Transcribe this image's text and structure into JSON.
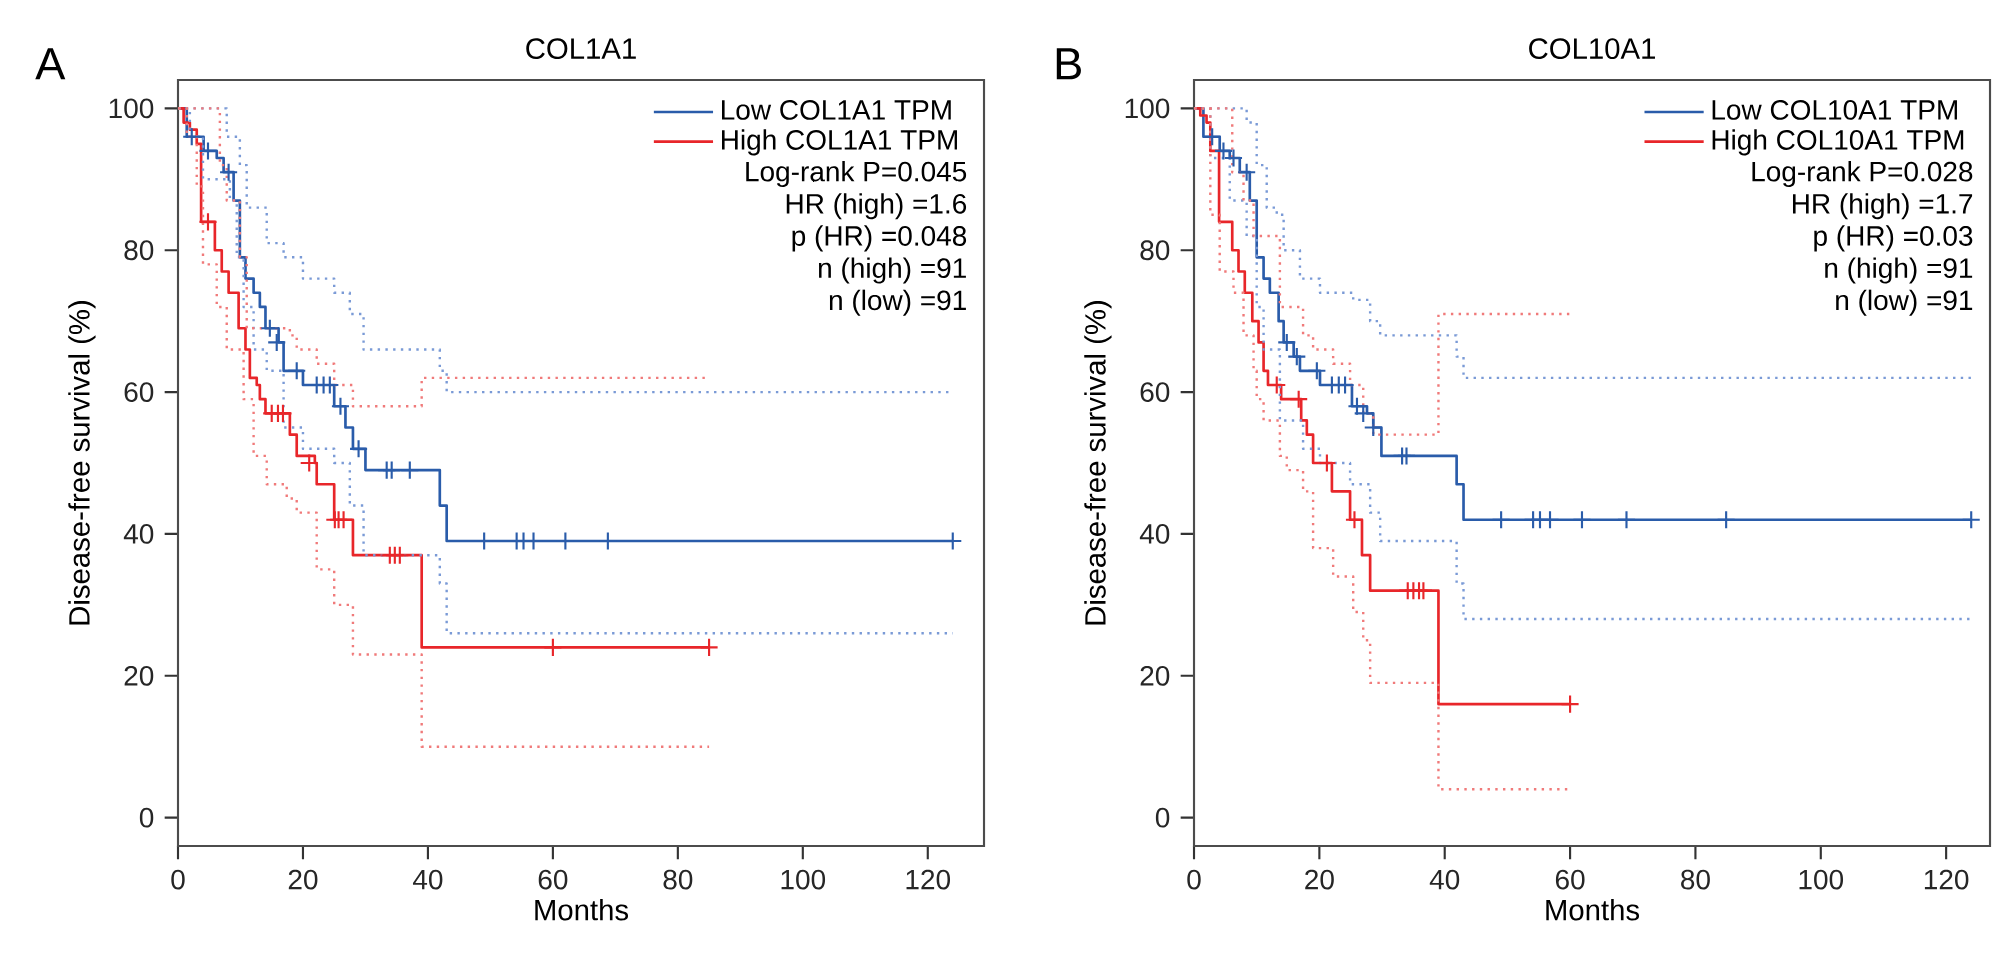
{
  "chart_data": [
    {
      "type": "step",
      "title": "COL1A1",
      "xlabel": "Months",
      "ylabel": "Disease-free survival (%)",
      "xlim": [
        0,
        129
      ],
      "ylim": [
        -4,
        104
      ],
      "xticks": [
        0,
        20,
        40,
        60,
        80,
        100,
        120
      ],
      "yticks": [
        0,
        20,
        40,
        60,
        80,
        100
      ],
      "legend": "top right",
      "annotations": [
        "A",
        "Log-rank P=0.045",
        "HR (high) =1.6",
        "p (HR) =0.048",
        "n (high) =91",
        "n (low) =91"
      ],
      "series": [
        {
          "name": "Low COL1A1 TPM",
          "color": "#2a5caa",
          "x": [
            0,
            1.4,
            4.1,
            6.2,
            7.3,
            8.9,
            9.9,
            10.8,
            12.1,
            13.1,
            14,
            16.1,
            16.9,
            20,
            25,
            26.8,
            28,
            30,
            41.9,
            43,
            124
          ],
          "values": [
            100,
            96,
            94,
            93,
            91,
            87,
            79,
            76,
            74,
            72,
            69,
            67,
            63,
            61,
            58,
            55,
            52,
            49,
            44,
            39,
            39
          ]
        },
        {
          "name": "High COL1A1 TPM",
          "color": "#e8262a",
          "x": [
            0,
            0.9,
            1.9,
            3,
            3.7,
            5.9,
            7,
            8.1,
            9.7,
            10.8,
            11.5,
            12.6,
            13.1,
            14,
            17.9,
            19,
            21.9,
            22.2,
            25,
            28,
            39,
            85
          ],
          "values": [
            100,
            98,
            97,
            95,
            84,
            80,
            77,
            74,
            69,
            66,
            62,
            61,
            59,
            57,
            54,
            51,
            50,
            47,
            42,
            37,
            24,
            24
          ]
        },
        {
          "color": "#7a9ad6",
          "line_style": "dotted",
          "x": [
            0,
            7.8,
            9.9,
            11,
            14.2,
            16.9,
            20,
            25,
            27.5,
            29.7,
            41.9,
            43,
            124
          ],
          "values": [
            100,
            96,
            92,
            86,
            81,
            79,
            76,
            74,
            71,
            66,
            63,
            60,
            60
          ]
        },
        {
          "color": "#7a9ad6",
          "line_style": "dotted",
          "x": [
            0,
            1.9,
            4,
            8.3,
            9.4,
            10.5,
            12.1,
            14.2,
            16.9,
            20,
            25,
            27.5,
            29.7,
            41.9,
            43,
            124
          ],
          "values": [
            100,
            96,
            90,
            87,
            79,
            72,
            66,
            63,
            55,
            52,
            50,
            44,
            37,
            33,
            26,
            26
          ]
        },
        {
          "color": "#f07a7a",
          "line_style": "dotted",
          "x": [
            0,
            6.7,
            7.8,
            9.9,
            11,
            17.9,
            19,
            22.2,
            25,
            28,
            39,
            85
          ],
          "values": [
            100,
            92,
            87,
            79,
            69,
            68,
            66,
            64,
            61,
            58,
            62,
            62
          ]
        },
        {
          "color": "#f07a7a",
          "line_style": "dotted",
          "x": [
            0,
            1.4,
            3,
            4,
            6.2,
            7.8,
            10.5,
            12.1,
            14.2,
            17.4,
            19,
            22.2,
            25,
            28,
            39,
            85
          ],
          "values": [
            100,
            96,
            89,
            78,
            72,
            66,
            59,
            51,
            47,
            45,
            43,
            35,
            30,
            23,
            10,
            10
          ]
        },
        {
          "type": "scatter",
          "marker": "cross",
          "color": "#2a5caa",
          "x": [
            2.2,
            4.8,
            8.1,
            14.7,
            15.8,
            19,
            22.2,
            23.3,
            24.3,
            26,
            28.9,
            33.4,
            34.2,
            37.1,
            49,
            54.2,
            55.3,
            56.9,
            62,
            68.8,
            124
          ],
          "values": [
            96,
            94,
            91,
            69,
            67,
            63,
            61,
            61,
            61,
            58,
            52,
            49,
            49,
            49,
            39,
            39,
            39,
            39,
            39,
            39,
            39
          ]
        },
        {
          "type": "scatter",
          "marker": "cross",
          "color": "#e8262a",
          "x": [
            4.8,
            15,
            16,
            16.8,
            21,
            25.1,
            25.7,
            26.5,
            33.9,
            34.7,
            35.5,
            60,
            85
          ],
          "values": [
            84,
            57,
            57,
            57,
            50,
            42,
            42,
            42,
            37,
            37,
            37,
            24,
            24
          ]
        }
      ]
    },
    {
      "type": "step",
      "title": "COL10A1",
      "xlabel": "Months",
      "ylabel": "Disease-free survival (%)",
      "xlim": [
        0,
        127
      ],
      "ylim": [
        -4,
        104
      ],
      "xticks": [
        0,
        20,
        40,
        60,
        80,
        100,
        120
      ],
      "yticks": [
        0,
        20,
        40,
        60,
        80,
        100
      ],
      "legend": "top right",
      "annotations": [
        "B",
        "Log-rank P=0.028",
        "HR (high) =1.7",
        "p (HR) =0.03",
        "n (high) =91",
        "n (low) =91"
      ],
      "series": [
        {
          "name": "Low COL10A1 TPM",
          "color": "#2a5caa",
          "x": [
            0,
            1.5,
            4.1,
            5.7,
            7.3,
            8.9,
            10,
            11.1,
            12.1,
            13.5,
            14.3,
            15.9,
            16.9,
            20.1,
            25.2,
            27.6,
            28.6,
            29.9,
            41.9,
            43,
            124
          ],
          "values": [
            100,
            96,
            94,
            93,
            91,
            87,
            79,
            76,
            74,
            70,
            67,
            65,
            63,
            61,
            58,
            57,
            55,
            51,
            47,
            42,
            42
          ]
        },
        {
          "name": "High COL10A1 TPM",
          "color": "#e8262a",
          "x": [
            0,
            1,
            2,
            2.6,
            4,
            6.1,
            7.1,
            8.1,
            9.3,
            10.3,
            11.1,
            11.8,
            13.9,
            17.1,
            18,
            19,
            22,
            24.9,
            26.8,
            28.1,
            39,
            60
          ],
          "values": [
            100,
            99,
            98,
            94,
            84,
            80,
            77,
            74,
            70,
            67,
            63,
            61,
            59,
            56,
            54,
            50,
            46,
            42,
            37,
            32,
            16,
            16
          ]
        },
        {
          "color": "#7a9ad6",
          "line_style": "dotted",
          "x": [
            0,
            8.4,
            10,
            11.6,
            13.2,
            14.3,
            16.9,
            20.1,
            25.4,
            28.1,
            29.7,
            41.9,
            43,
            124
          ],
          "values": [
            100,
            98,
            92,
            86,
            85,
            80,
            76,
            74,
            73,
            70,
            68,
            65,
            62,
            62
          ]
        },
        {
          "color": "#7a9ad6",
          "line_style": "dotted",
          "x": [
            0,
            2.6,
            5.7,
            8.4,
            10,
            11.1,
            13.7,
            17.4,
            20.1,
            24.9,
            28.1,
            29.7,
            41.9,
            43,
            124
          ],
          "values": [
            100,
            93,
            87,
            82,
            72,
            66,
            56,
            52,
            50,
            47,
            43,
            39,
            33,
            28,
            28
          ]
        },
        {
          "color": "#f07a7a",
          "line_style": "dotted",
          "x": [
            0,
            6.1,
            7.9,
            9.5,
            13.7,
            17.4,
            19,
            22.2,
            24.9,
            27,
            28.6,
            39,
            60
          ],
          "values": [
            100,
            91,
            87,
            82,
            72,
            68,
            66,
            64,
            61,
            57,
            54,
            71,
            71
          ]
        },
        {
          "color": "#f07a7a",
          "line_style": "dotted",
          "x": [
            0,
            2.6,
            4.1,
            6.3,
            7.9,
            9.5,
            10,
            11.1,
            13.7,
            14.8,
            17.4,
            19,
            22.2,
            25.4,
            27,
            28.1,
            39,
            60
          ],
          "values": [
            100,
            85,
            77,
            74,
            68,
            63,
            59,
            56,
            51,
            49,
            46,
            38,
            34,
            29,
            25,
            19,
            4,
            4
          ]
        },
        {
          "type": "scatter",
          "marker": "cross",
          "color": "#2a5caa",
          "x": [
            2.9,
            4.7,
            6.3,
            8.4,
            14.8,
            16.4,
            19.6,
            22,
            23.1,
            24.1,
            26,
            27,
            28.6,
            33.2,
            33.9,
            49,
            54.1,
            55.2,
            56.8,
            61.9,
            69,
            84.9,
            124
          ],
          "values": [
            96,
            94,
            93,
            91,
            67,
            65,
            63,
            61,
            61,
            61,
            58,
            57,
            55,
            51,
            51,
            42,
            42,
            42,
            42,
            42,
            42,
            42,
            42
          ]
        },
        {
          "type": "scatter",
          "marker": "cross",
          "color": "#e8262a",
          "x": [
            13.2,
            16.7,
            21.2,
            25.6,
            34.1,
            35,
            35.9,
            36.6,
            60
          ],
          "values": [
            61,
            59,
            50,
            42,
            32,
            32,
            32,
            32,
            16
          ]
        }
      ]
    }
  ]
}
